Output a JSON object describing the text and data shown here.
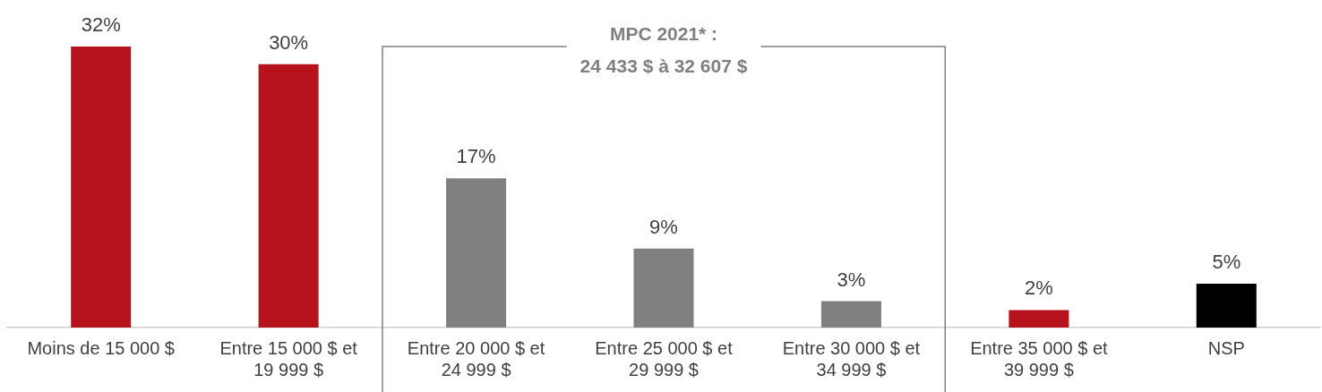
{
  "chart_data": {
    "type": "bar",
    "categories": [
      "Moins de 15 000 $",
      "Entre 15 000 $ et 19 999 $",
      "Entre 20 000 $ et 24 999 $",
      "Entre 25 000 $ et 29 999 $",
      "Entre 30 000 $ et 34 999 $",
      "Entre 35 000 $ et 39 999 $",
      "NSP"
    ],
    "values": [
      32,
      30,
      17,
      9,
      3,
      2,
      5
    ],
    "colors": [
      "#b5121b",
      "#b5121b",
      "#808080",
      "#808080",
      "#808080",
      "#b5121b",
      "#000000"
    ],
    "value_labels": [
      "32%",
      "30%",
      "17%",
      "9%",
      "3%",
      "2%",
      "5%"
    ],
    "annotations": [
      "MPC 2021* :\n24 433 $ à 32 607 $"
    ]
  }
}
